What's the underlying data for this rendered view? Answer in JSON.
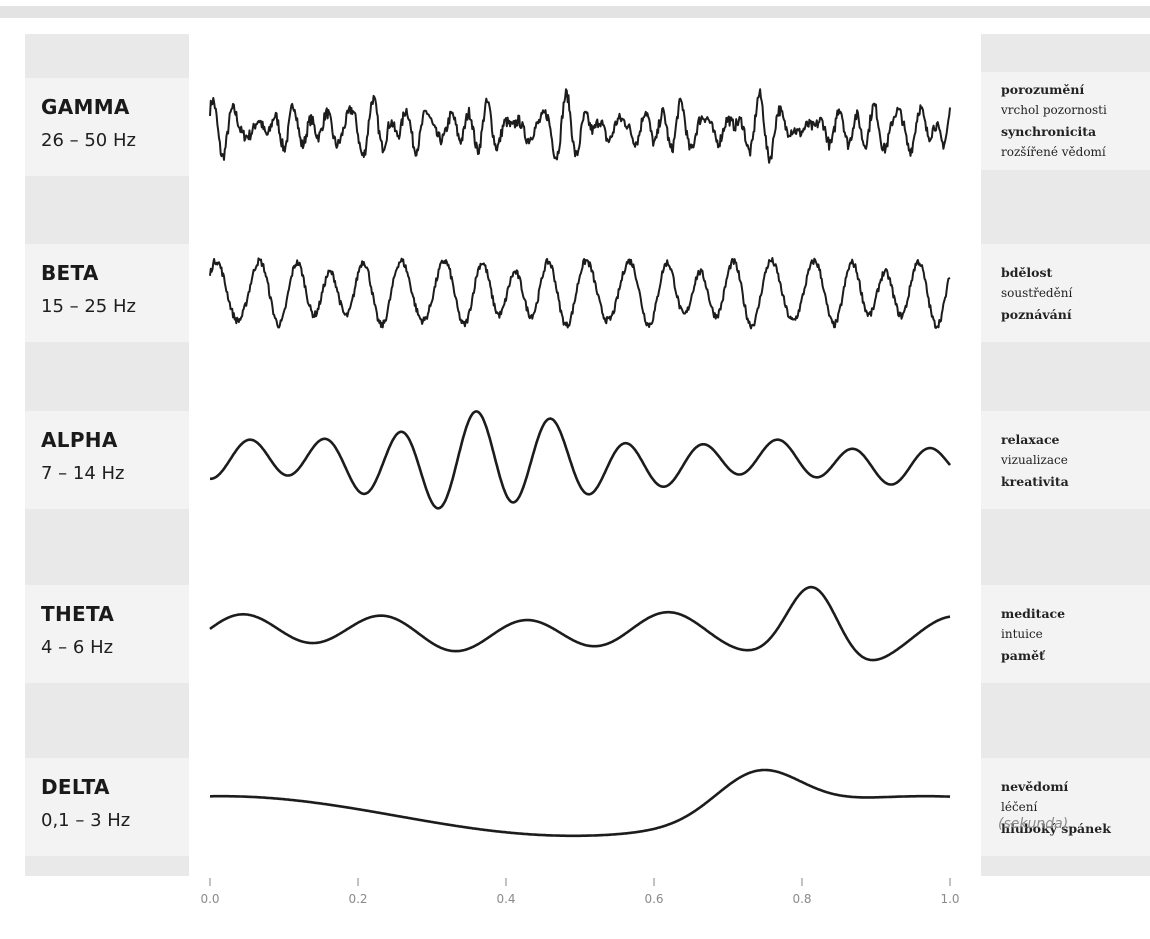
{
  "waves": [
    {
      "name": "GAMMA",
      "range": "26 – 50 Hz",
      "descriptions": [
        {
          "text": "porozumění",
          "bold": true
        },
        {
          "text": "vrchol pozornosti",
          "bold": false
        },
        {
          "text": "synchronicita",
          "bold": true
        },
        {
          "text": "rozšířené vědomí",
          "bold": false
        }
      ]
    },
    {
      "name": "BETA",
      "range": "15 – 25 Hz",
      "descriptions": [
        {
          "text": "bdělost",
          "bold": true
        },
        {
          "text": "soustředění",
          "bold": false
        },
        {
          "text": "poznávání",
          "bold": true
        }
      ]
    },
    {
      "name": "ALPHA",
      "range": "7 – 14 Hz",
      "descriptions": [
        {
          "text": "relaxace",
          "bold": true
        },
        {
          "text": "vizualizace",
          "bold": false
        },
        {
          "text": "kreativita",
          "bold": true
        }
      ]
    },
    {
      "name": "THETA",
      "range": "4 – 6 Hz",
      "descriptions": [
        {
          "text": "meditace",
          "bold": true
        },
        {
          "text": "intuice",
          "bold": false
        },
        {
          "text": "paměť",
          "bold": true
        }
      ]
    },
    {
      "name": "DELTA",
      "range": "0,1 – 3 Hz",
      "descriptions": [
        {
          "text": "nevědomí",
          "bold": true
        },
        {
          "text": "léčení",
          "bold": false
        },
        {
          "text": "hluboký spánek",
          "bold": true
        }
      ]
    }
  ],
  "axis": {
    "ticks": [
      0.0,
      0.2,
      0.4,
      0.6,
      0.8,
      1.0
    ],
    "tick_labels": [
      "0.0",
      "0.2",
      "0.4",
      "0.6",
      "0.8",
      "1.0"
    ],
    "unit": "(sekunda)"
  }
}
